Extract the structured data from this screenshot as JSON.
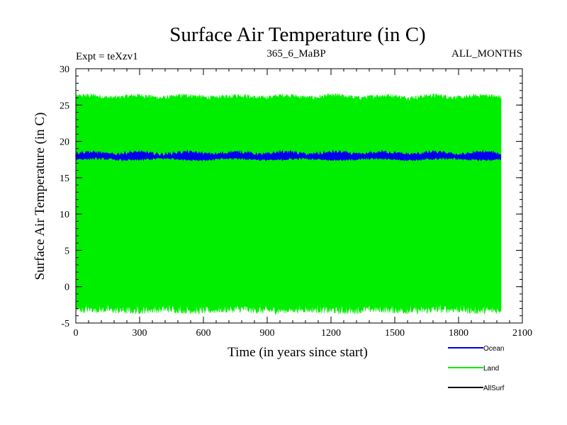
{
  "chart_data": {
    "type": "line",
    "title": "Surface Air Temperature (in C)",
    "subtitle_left": "Expt = teXzv1",
    "subtitle_center": "365_6_MaBP",
    "subtitle_right": "ALL_MONTHS",
    "xlabel": "Time (in years since start)",
    "ylabel": "Surface Air Temperature (in C)",
    "xlim": [
      0,
      2100
    ],
    "ylim": [
      -5,
      30
    ],
    "x_ticks": [
      0,
      300,
      600,
      900,
      1200,
      1500,
      1800,
      2100
    ],
    "y_ticks": [
      -5,
      0,
      5,
      10,
      15,
      20,
      25,
      30
    ],
    "x_tick_labels": [
      "0",
      "300",
      "600",
      "900",
      "1200",
      "1500",
      "1800",
      "2100"
    ],
    "y_tick_labels": [
      "-5",
      "0",
      "5",
      "10",
      "15",
      "20",
      "25",
      "30"
    ],
    "x_minor_step": 60,
    "y_minor_step": 1,
    "grid": false,
    "legend_position": "bottom-right",
    "series": [
      {
        "name": "Land",
        "color": "#00ee00",
        "style": "seasonal-band",
        "x_range": [
          0,
          2000
        ],
        "upper": {
          "mean": 26.1,
          "spread": 0.35
        },
        "lower": {
          "mean": -3.1,
          "spread": 0.6
        }
      },
      {
        "name": "Ocean",
        "color": "#0000ee",
        "style": "thick-line",
        "x_range": [
          0,
          2000
        ],
        "upper": {
          "mean": 18.3,
          "spread": 0.25
        },
        "lower": {
          "mean": 17.6,
          "spread": 0.15
        }
      },
      {
        "name": "AllSurf",
        "color": "#000000",
        "style": "legend-only"
      }
    ],
    "legend": [
      {
        "name": "Ocean",
        "color": "#0000ee"
      },
      {
        "name": "Land",
        "color": "#00ee00"
      },
      {
        "name": "AllSurf",
        "color": "#000000"
      }
    ]
  }
}
